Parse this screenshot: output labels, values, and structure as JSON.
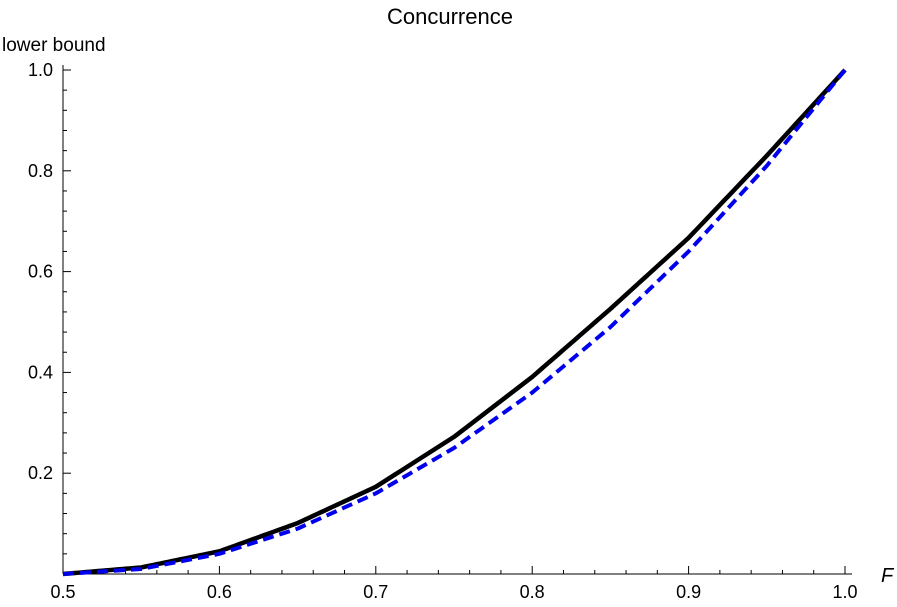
{
  "chart_data": {
    "type": "line",
    "title": "Concurrence",
    "xlabel": "F",
    "ylabel": "lower bound",
    "xlim": [
      0.5,
      1.0
    ],
    "ylim": [
      0.0,
      1.0
    ],
    "x_ticks": [
      "0.5",
      "0.6",
      "0.7",
      "0.8",
      "0.9",
      "1.0"
    ],
    "y_ticks": [
      "0.2",
      "0.4",
      "0.6",
      "0.8",
      "1.0"
    ],
    "grid": false,
    "series": [
      {
        "style": "solid",
        "color": "#000000",
        "x": [
          0.5,
          0.55,
          0.6,
          0.65,
          0.7,
          0.75,
          0.8,
          0.85,
          0.9,
          0.95,
          1.0
        ],
        "y": [
          0.0,
          0.013,
          0.045,
          0.101,
          0.173,
          0.272,
          0.391,
          0.526,
          0.667,
          0.83,
          1.0
        ]
      },
      {
        "style": "dashed",
        "color": "#0000ee",
        "x": [
          0.5,
          0.55,
          0.6,
          0.65,
          0.7,
          0.75,
          0.8,
          0.85,
          0.9,
          0.95,
          1.0
        ],
        "y": [
          0.0,
          0.01,
          0.04,
          0.09,
          0.16,
          0.25,
          0.36,
          0.49,
          0.64,
          0.81,
          1.0
        ]
      }
    ]
  }
}
